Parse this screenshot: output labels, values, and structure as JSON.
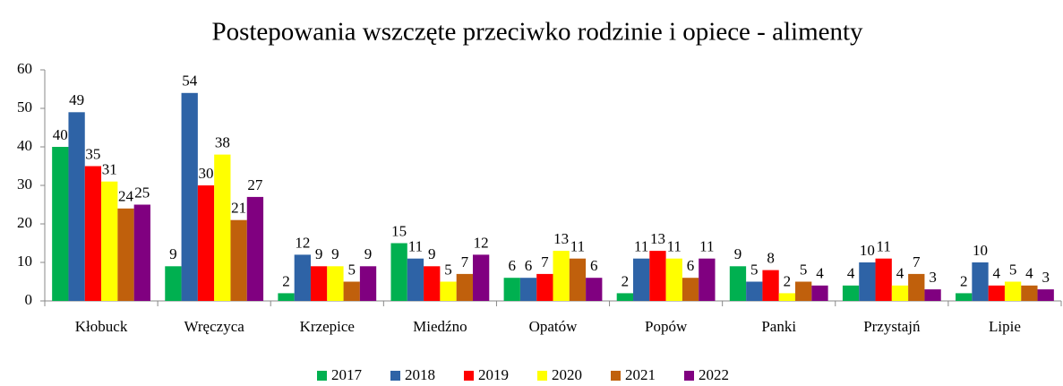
{
  "chart_data": {
    "type": "bar",
    "title": "Postepowania wszczęte przeciwko rodzinie i opiece - alimenty",
    "categories": [
      "Kłobuck",
      "Wręczyca",
      "Krzepice",
      "Miedźno",
      "Opatów",
      "Popów",
      "Panki",
      "Przystajń",
      "Lipie"
    ],
    "series": [
      {
        "name": "2017",
        "color": "#00b050",
        "values": [
          40,
          9,
          2,
          15,
          6,
          2,
          9,
          4,
          2
        ]
      },
      {
        "name": "2018",
        "color": "#2e63a6",
        "values": [
          49,
          54,
          12,
          11,
          6,
          11,
          5,
          10,
          10
        ]
      },
      {
        "name": "2019",
        "color": "#ff0000",
        "values": [
          35,
          30,
          9,
          9,
          7,
          13,
          8,
          11,
          4
        ]
      },
      {
        "name": "2020",
        "color": "#ffff00",
        "values": [
          31,
          38,
          9,
          5,
          13,
          11,
          2,
          4,
          5
        ]
      },
      {
        "name": "2021",
        "color": "#c0600c",
        "values": [
          24,
          21,
          5,
          7,
          11,
          6,
          5,
          7,
          4
        ]
      },
      {
        "name": "2022",
        "color": "#800080",
        "values": [
          25,
          27,
          9,
          12,
          6,
          11,
          4,
          3,
          3
        ]
      }
    ],
    "ylim": [
      0,
      60
    ],
    "yticks": [
      0,
      10,
      20,
      30,
      40,
      50,
      60
    ],
    "grid": false,
    "legend": "bottom"
  }
}
